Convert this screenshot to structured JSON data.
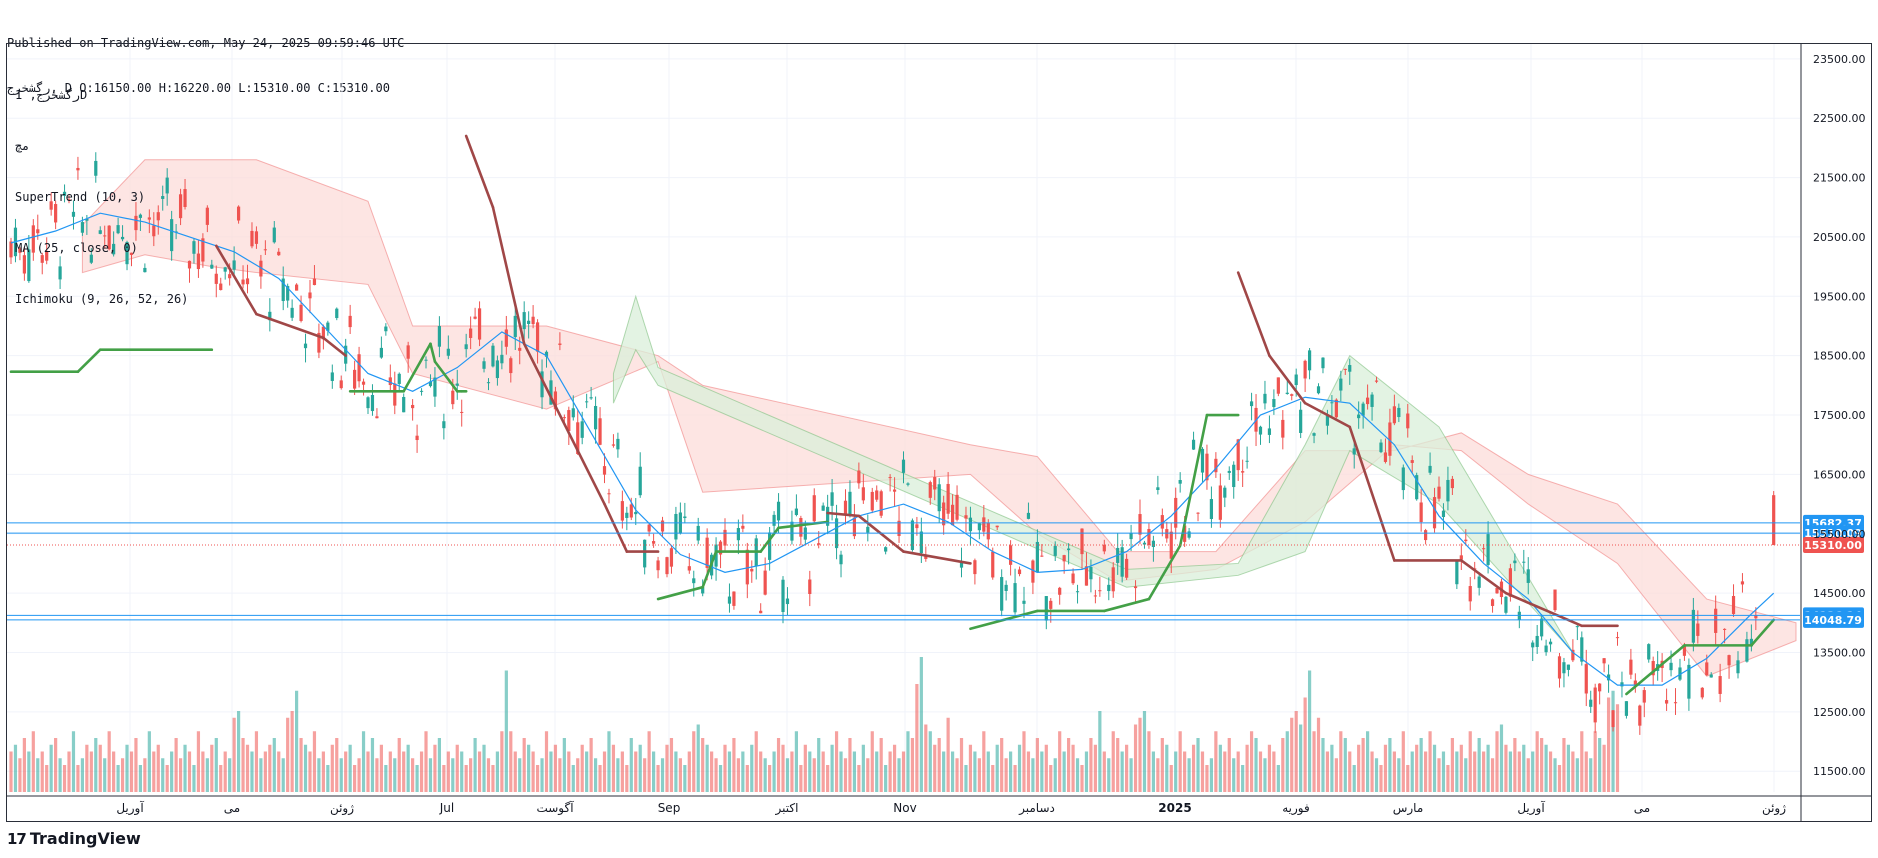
{
  "header": {
    "published": "Published on TradingView.com, May 24, 2025 09:59:46 UTC",
    "ohlc": "رگشخرج, D O:16150.00 H:16220.00 L:15310.00 C:15310.00"
  },
  "legend": {
    "symbol": "رگشخرج, 1D",
    "exchange": "مچ",
    "supertrend": "SuperTrend (10, 3)",
    "ma": "MA (25, close, 0)",
    "ichimoku": "Ichimoku (9, 26, 52, 26)"
  },
  "brand": {
    "name": "TradingView",
    "icon": "tradingview-logo-icon"
  },
  "colors": {
    "up": "#26a69a",
    "down": "#ef5350",
    "supertrend_up": "#43a047",
    "supertrend_down": "#a04747",
    "ma": "#2196f3",
    "cloud_bear": "#fcdcd9",
    "cloud_bull": "#d9efd9",
    "hline": "#2196f3"
  },
  "chart_data": {
    "type": "candlestick",
    "ylim": [
      11150,
      23750
    ],
    "y_ticks": [
      "23500.00",
      "22500.00",
      "21500.00",
      "20500.00",
      "19500.00",
      "18500.00",
      "17500.00",
      "16500.00",
      "15500.00",
      "14500.00",
      "13500.00",
      "12500.00",
      "11500.00"
    ],
    "x_labels": [
      "آوریل",
      "می",
      "ژوئن",
      "Jul",
      "آگوست",
      "Sep",
      "اکتبر",
      "Nov",
      "دسامبر",
      "2025",
      "فوریه",
      "مارس",
      "آوریل",
      "می",
      "ژوئن"
    ],
    "price_labels": [
      {
        "value": 15682.37,
        "text": "15682.37",
        "color": "#2196f3"
      },
      {
        "value": 15510.09,
        "text": "15510.09",
        "color": "#2196f3"
      },
      {
        "value": 15310.0,
        "text": "15310.00",
        "color": "#ef5350"
      },
      {
        "value": 14126.14,
        "text": "14126.14",
        "color": "#2196f3"
      },
      {
        "value": 14048.79,
        "text": "14048.79",
        "color": "#2196f3"
      }
    ],
    "last": {
      "open": 16150,
      "high": 16220,
      "low": 15310,
      "close": 15310
    },
    "ma_path": [
      [
        0,
        20400
      ],
      [
        10,
        20600
      ],
      [
        20,
        20900
      ],
      [
        30,
        20750
      ],
      [
        40,
        20500
      ],
      [
        50,
        20250
      ],
      [
        60,
        19800
      ],
      [
        70,
        19000
      ],
      [
        80,
        18200
      ],
      [
        90,
        17900
      ],
      [
        100,
        18300
      ],
      [
        110,
        18900
      ],
      [
        120,
        18500
      ],
      [
        130,
        17200
      ],
      [
        140,
        15900
      ],
      [
        150,
        15150
      ],
      [
        160,
        14850
      ],
      [
        170,
        15000
      ],
      [
        180,
        15400
      ],
      [
        190,
        15800
      ],
      [
        200,
        16000
      ],
      [
        210,
        15700
      ],
      [
        220,
        15200
      ],
      [
        230,
        14850
      ],
      [
        240,
        14900
      ],
      [
        250,
        15200
      ],
      [
        260,
        15800
      ],
      [
        270,
        16600
      ],
      [
        280,
        17500
      ],
      [
        290,
        17800
      ],
      [
        300,
        17700
      ],
      [
        310,
        17000
      ],
      [
        320,
        15800
      ],
      [
        330,
        15000
      ],
      [
        340,
        14400
      ],
      [
        350,
        13500
      ],
      [
        360,
        12950
      ],
      [
        370,
        12950
      ],
      [
        380,
        13400
      ],
      [
        390,
        14150
      ],
      [
        395,
        14500
      ]
    ],
    "supertrend_path": [
      [
        0,
        18230,
        "u"
      ],
      [
        15,
        18230,
        "u"
      ],
      [
        20,
        18600,
        "u"
      ],
      [
        45,
        18600,
        "u"
      ],
      [
        46,
        20350,
        "d"
      ],
      [
        55,
        19200,
        "d"
      ],
      [
        70,
        18800,
        "d"
      ],
      [
        75,
        18500,
        "d"
      ],
      [
        76,
        17900,
        "u"
      ],
      [
        88,
        17900,
        "u"
      ],
      [
        94,
        18700,
        "u"
      ],
      [
        95,
        18400,
        "u"
      ],
      [
        100,
        17900,
        "u"
      ],
      [
        101,
        17900,
        "u"
      ],
      [
        102,
        17900,
        "u"
      ],
      [
        102,
        22200,
        "d"
      ],
      [
        108,
        21000,
        "d"
      ],
      [
        115,
        18700,
        "d"
      ],
      [
        125,
        17200,
        "d"
      ],
      [
        133,
        16000,
        "d"
      ],
      [
        138,
        15200,
        "d"
      ],
      [
        145,
        15200,
        "d"
      ],
      [
        145,
        14400,
        "u"
      ],
      [
        155,
        14600,
        "u"
      ],
      [
        158,
        15200,
        "u"
      ],
      [
        168,
        15200,
        "u"
      ],
      [
        172,
        15600,
        "u"
      ],
      [
        183,
        15700,
        "u"
      ],
      [
        183,
        15850,
        "d"
      ],
      [
        190,
        15800,
        "d"
      ],
      [
        200,
        15200,
        "d"
      ],
      [
        215,
        15000,
        "d"
      ],
      [
        215,
        13900,
        "u"
      ],
      [
        230,
        14200,
        "u"
      ],
      [
        245,
        14200,
        "u"
      ],
      [
        255,
        14400,
        "u"
      ],
      [
        262,
        15300,
        "u"
      ],
      [
        268,
        17500,
        "u"
      ],
      [
        275,
        17500,
        "u"
      ],
      [
        275,
        19900,
        "d"
      ],
      [
        282,
        18500,
        "d"
      ],
      [
        290,
        17700,
        "d"
      ],
      [
        300,
        17300,
        "d"
      ],
      [
        310,
        15050,
        "d"
      ],
      [
        325,
        15050,
        "d"
      ],
      [
        335,
        14500,
        "d"
      ],
      [
        352,
        13950,
        "d"
      ],
      [
        360,
        13950,
        "d"
      ],
      [
        362,
        12800,
        "u"
      ],
      [
        375,
        13620,
        "u"
      ],
      [
        390,
        13620,
        "u"
      ],
      [
        395,
        14050,
        "u"
      ]
    ],
    "cloud_bear": [
      [
        16,
        20700,
        19900
      ],
      [
        30,
        21800,
        20200
      ],
      [
        45,
        21800,
        20000
      ],
      [
        55,
        21800,
        19900
      ],
      [
        80,
        21100,
        19700
      ],
      [
        90,
        19000,
        18200
      ],
      [
        120,
        19000,
        17600
      ],
      [
        145,
        18500,
        18400
      ],
      [
        155,
        18000,
        16200
      ],
      [
        215,
        17000,
        16500
      ],
      [
        230,
        16800,
        15500
      ],
      [
        248,
        15200,
        14700
      ],
      [
        270,
        15200,
        14900
      ],
      [
        290,
        16900,
        15700
      ],
      [
        310,
        16900,
        17000
      ],
      [
        325,
        17200,
        16900
      ],
      [
        340,
        16500,
        16000
      ],
      [
        360,
        16000,
        15000
      ],
      [
        380,
        14400,
        13100
      ],
      [
        400,
        14000,
        13700
      ]
    ],
    "cloud_bull": [
      [
        135,
        18200,
        17700
      ],
      [
        140,
        19500,
        18600
      ],
      [
        145,
        18300,
        18000
      ],
      [
        250,
        14900,
        14600
      ],
      [
        275,
        15000,
        14800
      ],
      [
        290,
        17000,
        15200
      ],
      [
        300,
        18500,
        16900
      ],
      [
        320,
        17300,
        16000
      ],
      [
        350,
        13500,
        13500
      ]
    ],
    "volumes": [
      30,
      35,
      25,
      40,
      30,
      45,
      25,
      30,
      20,
      35,
      40,
      25,
      20,
      30,
      45,
      20,
      25,
      35,
      30,
      40,
      35,
      25,
      45,
      30,
      20,
      25,
      35,
      30,
      40,
      20,
      25,
      45,
      30,
      35,
      25,
      20,
      30,
      40,
      25,
      35,
      30,
      20,
      45,
      30,
      25,
      35,
      40,
      20,
      30,
      25,
      55,
      60,
      40,
      35,
      30,
      45,
      25,
      30,
      35,
      40,
      30,
      25,
      55,
      60,
      75,
      40,
      35,
      30,
      45,
      25,
      30,
      20,
      35,
      40,
      25,
      30,
      35,
      20,
      25,
      45,
      30,
      40,
      25,
      35,
      20,
      30,
      25,
      40,
      30,
      35,
      25,
      20,
      30,
      45,
      25,
      35,
      40,
      20,
      30,
      25,
      35,
      30,
      20,
      25,
      40,
      30,
      35,
      25,
      20,
      30,
      45,
      90,
      45,
      30,
      25,
      40,
      35,
      30,
      20,
      25,
      45,
      30,
      35,
      25,
      40,
      30,
      20,
      25,
      35,
      30,
      40,
      25,
      20,
      30,
      45,
      35,
      25,
      30,
      20,
      40,
      30,
      35,
      25,
      45,
      30,
      20,
      25,
      35,
      40,
      30,
      25,
      20,
      30,
      45,
      50,
      40,
      35,
      30,
      25,
      20,
      35,
      30,
      40,
      25,
      30,
      20,
      35,
      45,
      30,
      25,
      20,
      30,
      40,
      35,
      25,
      30,
      45,
      20,
      35,
      30,
      25,
      40,
      30,
      20,
      35,
      45,
      30,
      25,
      40,
      30,
      20,
      35,
      25,
      45,
      30,
      40,
      20,
      30,
      35,
      25,
      30,
      45,
      40,
      80,
      100,
      50,
      45,
      35,
      40,
      30,
      55,
      30,
      25,
      40,
      20,
      35,
      30,
      25,
      45,
      30,
      20,
      35,
      40,
      25,
      30,
      20,
      35,
      45,
      30,
      25,
      40,
      30,
      35,
      20,
      25,
      45,
      30,
      40,
      35,
      25,
      20,
      30,
      40,
      35,
      60,
      30,
      25,
      45,
      40,
      30,
      35,
      25,
      50,
      55,
      60,
      45,
      30,
      25,
      40,
      35,
      20,
      30,
      45,
      30,
      25,
      35,
      40,
      30,
      20,
      25,
      45,
      35,
      30,
      40,
      25,
      30,
      20,
      35,
      45,
      40,
      30,
      25,
      35,
      30,
      20,
      40,
      45,
      55,
      60,
      50,
      70,
      90,
      45,
      55,
      40,
      30,
      35,
      25,
      45,
      40,
      30,
      20,
      35,
      40,
      45,
      30,
      25,
      20,
      35,
      40,
      30,
      25,
      45,
      20,
      30,
      35,
      40,
      30,
      45,
      35,
      25,
      30,
      20,
      40,
      30,
      35,
      25,
      45,
      30,
      40,
      30,
      35,
      25,
      45,
      50,
      35,
      30,
      40,
      30,
      35,
      25,
      30,
      45,
      40,
      35,
      30,
      25,
      20,
      40,
      35,
      30,
      25,
      45,
      30,
      25,
      45,
      40,
      35,
      70,
      75,
      65
    ]
  }
}
